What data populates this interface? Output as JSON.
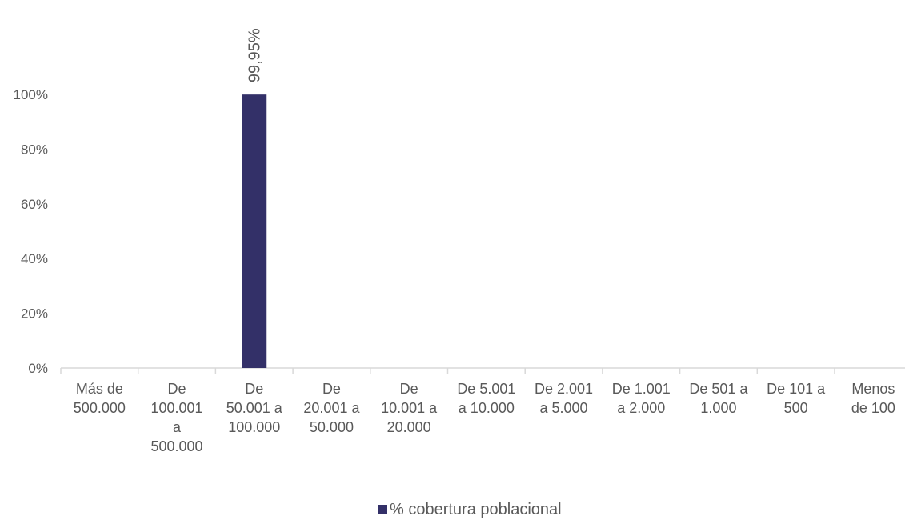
{
  "chart_data": {
    "type": "bar",
    "categories": [
      [
        "Más de",
        "500.000"
      ],
      [
        "De",
        "100.001",
        "a",
        "500.000"
      ],
      [
        "De",
        "50.001 a",
        "100.000"
      ],
      [
        "De",
        "20.001 a",
        "50.000"
      ],
      [
        "De",
        "10.001 a",
        "20.000"
      ],
      [
        "De 5.001",
        "a 10.000"
      ],
      [
        "De 2.001",
        "a 5.000"
      ],
      [
        "De 1.001",
        "a 2.000"
      ],
      [
        "De 501 a",
        "1.000"
      ],
      [
        "De 101 a",
        "500"
      ],
      [
        "Menos",
        "de 100"
      ]
    ],
    "series": [
      {
        "name": "% cobertura poblacional",
        "values": [
          null,
          null,
          99.95,
          null,
          null,
          null,
          null,
          null,
          null,
          null,
          null
        ],
        "data_labels": [
          null,
          null,
          "99,95%",
          null,
          null,
          null,
          null,
          null,
          null,
          null,
          null
        ],
        "color": "#333068"
      }
    ],
    "y_ticks": [
      "0%",
      "20%",
      "40%",
      "60%",
      "80%",
      "100%"
    ],
    "ylim": [
      0,
      100
    ],
    "grid": false,
    "legend_position": "bottom-center",
    "axis_color": "#d9d9d9"
  }
}
